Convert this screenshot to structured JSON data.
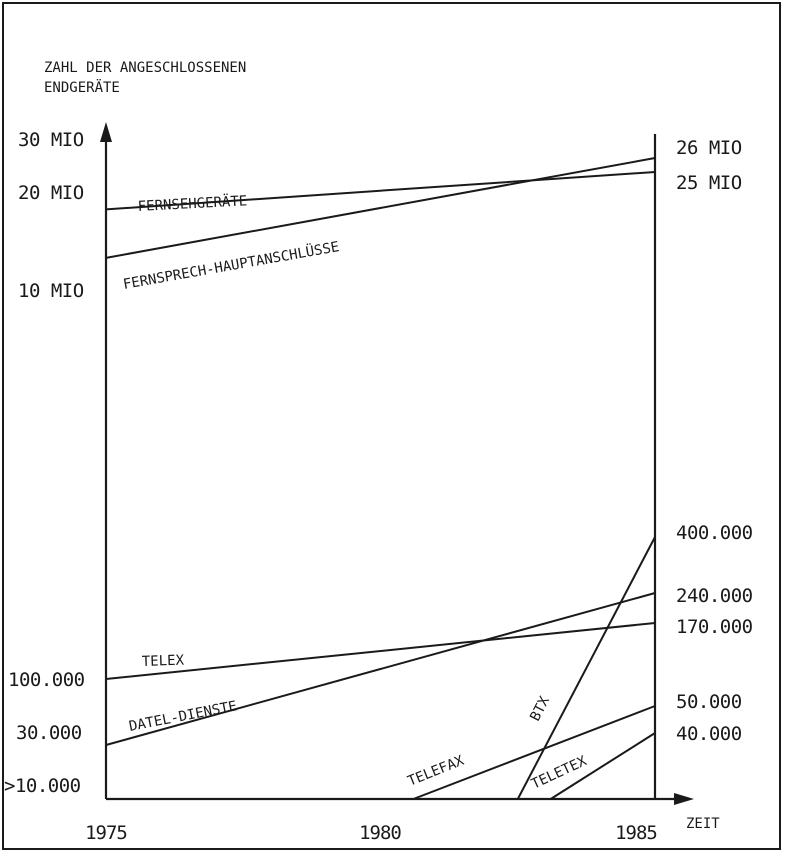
{
  "chart_data": {
    "type": "line",
    "ylabel_lines": [
      "ZAHL DER ANGESCHLOSSENEN",
      "ENDGERÄTE"
    ],
    "xlabel": "ZEIT",
    "x_ticks": [
      "1975",
      "1980",
      "1985"
    ],
    "xlim": [
      1975,
      1985
    ],
    "y_scale": "broken",
    "left_y_ticks": [
      {
        "label": "30 MIO",
        "value": 30000000
      },
      {
        "label": "20 MIO",
        "value": 20000000
      },
      {
        "label": "10 MIO",
        "value": 10000000
      },
      {
        "label": "100.000",
        "value": 100000
      },
      {
        "label": "30.000",
        "value": 30000
      },
      {
        "label": ">10.000",
        "value": 10000
      }
    ],
    "right_y_ticks": [
      {
        "label": "26 MIO",
        "value": 26000000
      },
      {
        "label": "25 MIO",
        "value": 25000000
      },
      {
        "label": "400.000",
        "value": 400000
      },
      {
        "label": "240.000",
        "value": 240000
      },
      {
        "label": "170.000",
        "value": 170000
      },
      {
        "label": "50.000",
        "value": 50000
      },
      {
        "label": "40.000",
        "value": 40000
      }
    ],
    "series": [
      {
        "name": "FERNSEHGERÄTE",
        "x": [
          1975,
          1985
        ],
        "y": [
          18000000,
          25000000
        ]
      },
      {
        "name": "FERNSPRECH-HAUPTANSCHLÜSSE",
        "x": [
          1975,
          1985
        ],
        "y": [
          13000000,
          26000000
        ]
      },
      {
        "name": "TELEX",
        "x": [
          1975,
          1985
        ],
        "y": [
          100000,
          170000
        ]
      },
      {
        "name": "DATEL-DIENSTE",
        "x": [
          1975,
          1985
        ],
        "y": [
          30000,
          240000
        ]
      },
      {
        "name": "BTX",
        "x": [
          1982.5,
          1985
        ],
        "y": [
          10000,
          400000
        ]
      },
      {
        "name": "TELEFAX",
        "x": [
          1980.6,
          1985
        ],
        "y": [
          10000,
          50000
        ]
      },
      {
        "name": "TELETEX",
        "x": [
          1983.1,
          1985
        ],
        "y": [
          10000,
          40000
        ]
      }
    ],
    "grid": false,
    "legend": "none"
  }
}
